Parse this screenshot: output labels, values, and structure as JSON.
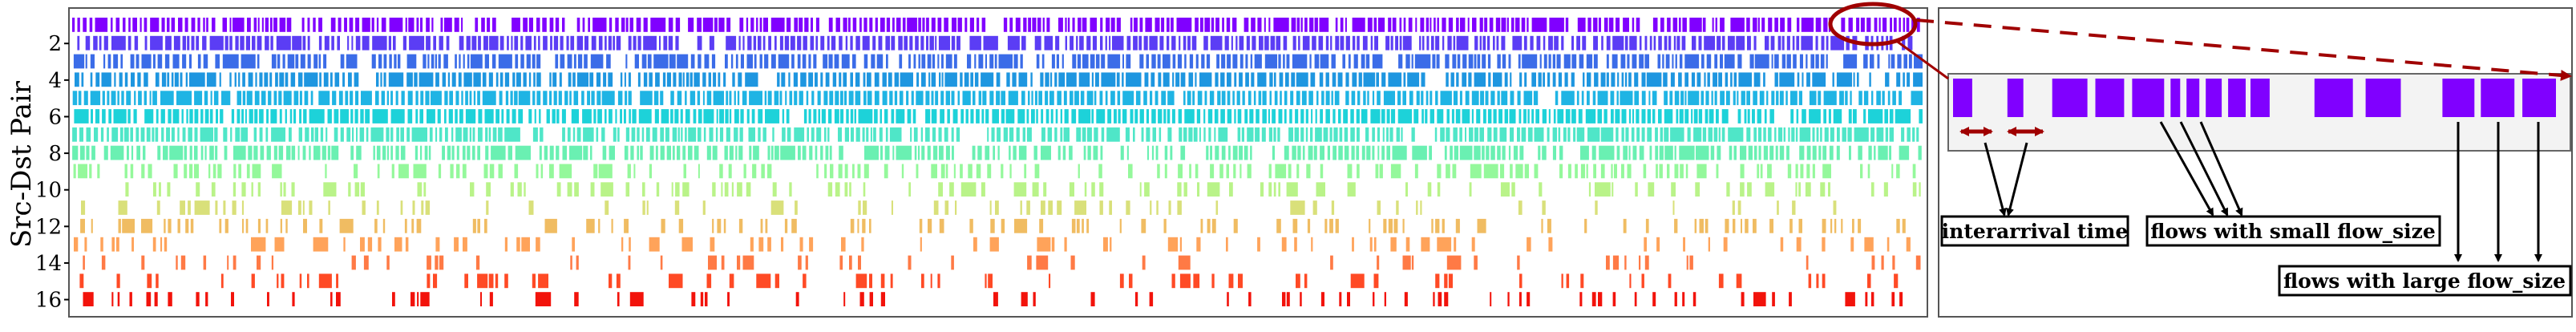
{
  "chart_data": {
    "type": "timeline",
    "ylabel": "Src-Dst Pair",
    "xlabel": "",
    "title": "",
    "rows": 16,
    "y_ticks": [
      2,
      4,
      6,
      8,
      10,
      12,
      14,
      16
    ],
    "row_colors": [
      "#8000ff",
      "#5b3df5",
      "#3b6ce8",
      "#1e96e0",
      "#1fb4e4",
      "#1dd2d9",
      "#4fe6c8",
      "#6af0b2",
      "#94f89b",
      "#b9f389",
      "#d9e07a",
      "#f0bc62",
      "#ffa35a",
      "#ff7a45",
      "#ff4a25",
      "#f2130b"
    ],
    "row_density": [
      0.92,
      0.9,
      0.88,
      0.93,
      0.96,
      0.95,
      0.9,
      0.8,
      0.62,
      0.42,
      0.32,
      0.45,
      0.35,
      0.28,
      0.3,
      0.32
    ],
    "inset_flows": [
      {
        "start": 0.0,
        "width": 0.6
      },
      {
        "start": 1.7,
        "width": 0.5
      },
      {
        "start": 3.1,
        "width": 1.1
      },
      {
        "start": 4.45,
        "width": 0.9
      },
      {
        "start": 5.6,
        "width": 1.0
      },
      {
        "start": 6.8,
        "width": 0.3
      },
      {
        "start": 7.3,
        "width": 0.4
      },
      {
        "start": 7.9,
        "width": 0.5
      },
      {
        "start": 8.6,
        "width": 0.55
      },
      {
        "start": 9.3,
        "width": 0.6
      },
      {
        "start": 11.3,
        "width": 1.2
      },
      {
        "start": 12.9,
        "width": 1.1
      },
      {
        "start": 15.3,
        "width": 1.0
      },
      {
        "start": 16.5,
        "width": 1.05
      },
      {
        "start": 17.8,
        "width": 1.05
      }
    ],
    "inset_color": "#8000ff",
    "callout_color": "#a00000",
    "annotations": [
      {
        "id": "interarrival",
        "text": "interarrival time"
      },
      {
        "id": "small",
        "text": "flows with small flow_size"
      },
      {
        "id": "large",
        "text": "flows with large flow_size"
      }
    ]
  }
}
